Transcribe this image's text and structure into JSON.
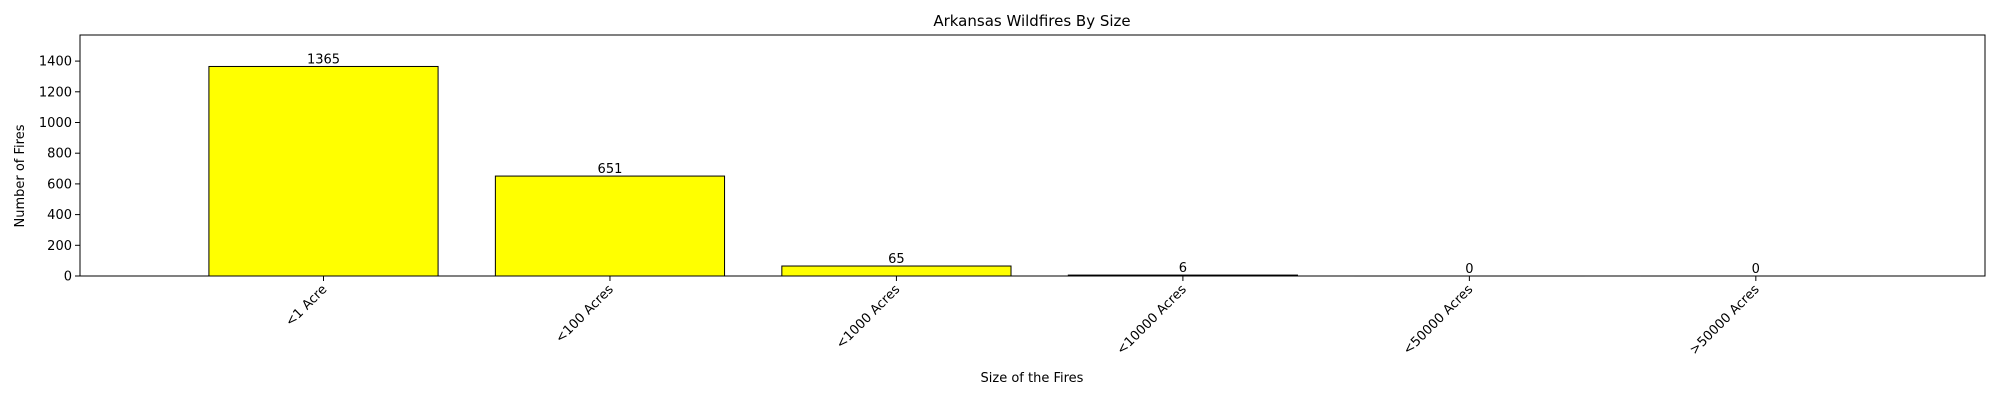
{
  "chart_data": {
    "type": "bar",
    "title": "Arkansas Wildfires By Size",
    "xlabel": "Size of the Fires",
    "ylabel": "Number of Fires",
    "categories": [
      "<1 Acre",
      "<100 Acres",
      "<1000 Acres",
      "<10000 Acres",
      "<50000 Acres",
      ">50000 Acres"
    ],
    "values": [
      1365,
      651,
      65,
      6,
      0,
      0
    ],
    "ylim": [
      0,
      1570
    ],
    "yticks": [
      0,
      200,
      400,
      600,
      800,
      1000,
      1200,
      1400
    ],
    "bar_color": "#ffff00",
    "edge_color": "#000000",
    "grid": false,
    "xtick_rotation_deg": 45,
    "legend": "none"
  }
}
